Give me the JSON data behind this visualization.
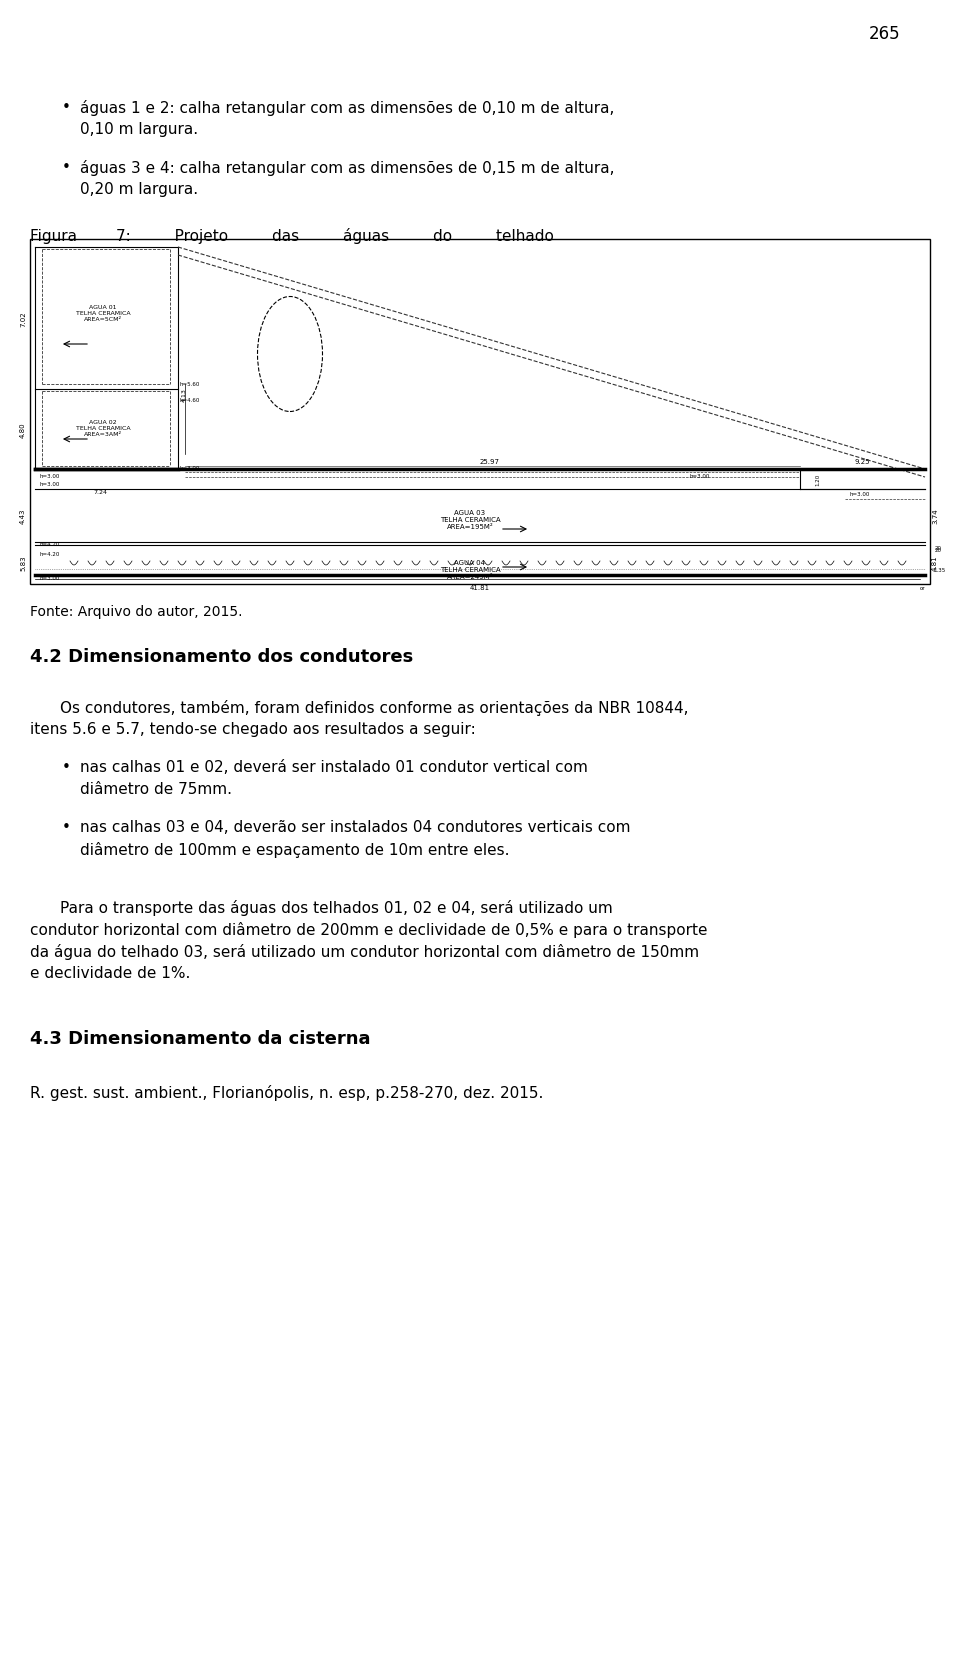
{
  "page_number": "265",
  "background_color": "#ffffff",
  "text_color": "#000000",
  "bullet_items_top": [
    "águas 1 e 2: calha retangular com as dimensões de 0,10 m de altura,\n0,10 m largura.",
    "águas 3 e 4: calha retangular com as dimensões de 0,15 m de altura,\n0,20 m largura."
  ],
  "figura_caption": "Figura        7:         Projeto         das         águas         do         telhado",
  "fonte_text": "Fonte: Arquivo do autor, 2015.",
  "section_heading": "4.2 Dimensionamento dos condutores",
  "paragraph1": "Os condutores, também, foram definidos conforme as orientações da NBR 10844,\nitens 5.6 e 5.7, tendo-se chegado aos resultados a seguir:",
  "bullet_items_bottom": [
    "nas calhas 01 e 02, deverá ser instalado 01 condutor vertical com\ndiâmetro de 75mm.",
    "nas calhas 03 e 04, deverão ser instalados 04 condutores verticais com\ndiâmetro de 100mm e espaçamento de 10m entre eles."
  ],
  "paragraph2": "Para o transporte das águas dos telhados 01, 02 e 04, será utilizado um\ncondutor horizontal com diâmetro de 200mm e declividade de 0,5% e para o transporte\nda água do telhado 03, será utilizado um condutor horizontal com diâmetro de 150mm\ne declividade de 1%.",
  "section_heading2": "4.3 Dimensionamento da cisterna",
  "final_ref": "R. gest. sust. ambient., Florianópolis, n. esp, p.258-270, dez. 2015."
}
